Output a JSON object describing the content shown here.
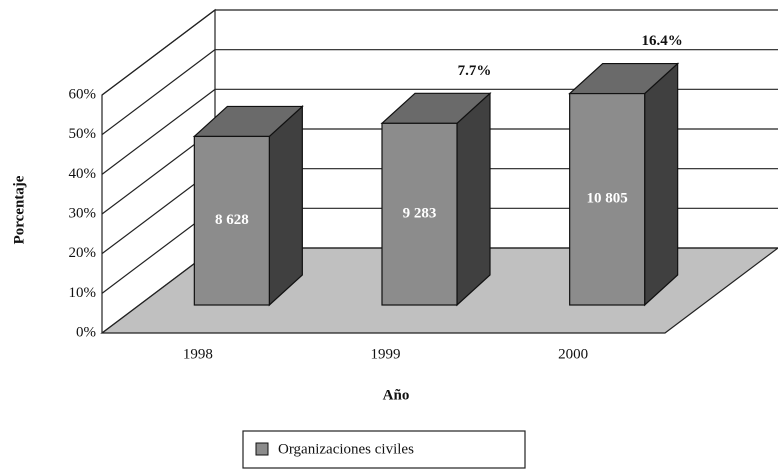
{
  "chart_data": {
    "type": "bar3d",
    "categories": [
      "1998",
      "1999",
      "2000"
    ],
    "series": [
      {
        "name": "Organizaciones civiles",
        "color": "#8c8c8c",
        "values": [
          42.5,
          45.8,
          53.3
        ]
      }
    ],
    "counts": [
      8628,
      9283,
      10805
    ],
    "count_labels": [
      "8 628",
      "9 283",
      "10 805"
    ],
    "growth_labels": [
      null,
      "7.7%",
      "16.4%"
    ],
    "xlabel": "Año",
    "ylabel": "Porcentaje",
    "ylim": [
      0,
      60
    ],
    "yticks": [
      {
        "value": 0,
        "label": "0%"
      },
      {
        "value": 10,
        "label": "10%"
      },
      {
        "value": 20,
        "label": "20%"
      },
      {
        "value": 30,
        "label": "30%"
      },
      {
        "value": 40,
        "label": "40%"
      },
      {
        "value": 50,
        "label": "50%"
      },
      {
        "value": 60,
        "label": "60%"
      }
    ],
    "grid": true
  }
}
